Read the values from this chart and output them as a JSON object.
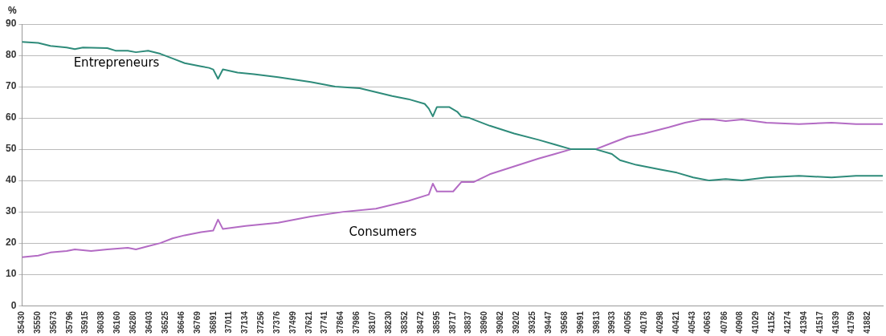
{
  "chart_data": {
    "type": "line",
    "ylabel": "%",
    "xlim": [
      35430,
      41994
    ],
    "ylim": [
      0,
      90
    ],
    "yticks": [
      0,
      10,
      20,
      30,
      40,
      50,
      60,
      70,
      80,
      90
    ],
    "xticks": [
      35430,
      35550,
      35673,
      35796,
      35915,
      36038,
      36160,
      36280,
      36403,
      36525,
      36646,
      36769,
      36891,
      37011,
      37134,
      37256,
      37376,
      37499,
      37621,
      37741,
      37864,
      37986,
      38107,
      38230,
      38352,
      38472,
      38595,
      38717,
      38837,
      38960,
      39082,
      39202,
      39325,
      39447,
      39568,
      39691,
      39813,
      39933,
      40056,
      40178,
      40298,
      40421,
      40543,
      40663,
      40786,
      40908,
      41029,
      41152,
      41274,
      41394,
      41517,
      41639,
      41759,
      41882
    ],
    "grid": "y",
    "legend": false,
    "marker": "none",
    "line_style": "solid",
    "series": [
      {
        "name": "Entrepreneurs",
        "color": "#2e8b7a",
        "x": [
          35430,
          35554,
          35647,
          35771,
          35833,
          35895,
          36081,
          36143,
          36237,
          36299,
          36392,
          36485,
          36578,
          36671,
          36795,
          36857,
          36888,
          36925,
          36962,
          37074,
          37198,
          37384,
          37632,
          37818,
          38005,
          38253,
          38377,
          38501,
          38532,
          38563,
          38594,
          38687,
          38749,
          38780,
          38842,
          38997,
          39183,
          39369,
          39494,
          39618,
          39804,
          39928,
          39990,
          40114,
          40300,
          40424,
          40548,
          40610,
          40672,
          40796,
          40920,
          41106,
          41355,
          41603,
          41789,
          41994
        ],
        "values": [
          84.3,
          84,
          83,
          82.5,
          82,
          82.5,
          82.3,
          81.5,
          81.5,
          81,
          81.5,
          80.5,
          79,
          77.5,
          76.5,
          76,
          75.5,
          72.5,
          75.5,
          74.5,
          74,
          73,
          71.5,
          70,
          69.5,
          67,
          66,
          64.5,
          63,
          60.5,
          63.5,
          63.5,
          62,
          60.5,
          60,
          57.5,
          55,
          53,
          51.5,
          50,
          50,
          48.5,
          46.5,
          45,
          43.5,
          42.5,
          41,
          40.5,
          40,
          40.5,
          40,
          41,
          41.5,
          41,
          41.5,
          41.5
        ]
      },
      {
        "name": "Consumers",
        "color": "#b36bc4",
        "x": [
          35430,
          35554,
          35647,
          35771,
          35833,
          35957,
          36081,
          36237,
          36299,
          36392,
          36485,
          36578,
          36671,
          36795,
          36888,
          36925,
          36962,
          37136,
          37384,
          37632,
          37881,
          38129,
          38377,
          38532,
          38563,
          38594,
          38718,
          38780,
          38873,
          38997,
          39183,
          39369,
          39494,
          39618,
          39804,
          39928,
          40052,
          40176,
          40362,
          40486,
          40548,
          40610,
          40703,
          40796,
          40920,
          41106,
          41355,
          41603,
          41789,
          41994
        ],
        "values": [
          15.5,
          16,
          17,
          17.5,
          18,
          17.5,
          18,
          18.5,
          18,
          19,
          20,
          21.5,
          22.5,
          23.5,
          24,
          27.5,
          24.5,
          25.5,
          26.5,
          28.5,
          30,
          31,
          33.5,
          35.5,
          39,
          36.5,
          36.5,
          39.5,
          39.5,
          42,
          44.5,
          47,
          48.5,
          50,
          50,
          52,
          54,
          55,
          57,
          58.5,
          59,
          59.5,
          59.5,
          59,
          59.5,
          58.5,
          58,
          58.5,
          58,
          58
        ]
      }
    ]
  }
}
